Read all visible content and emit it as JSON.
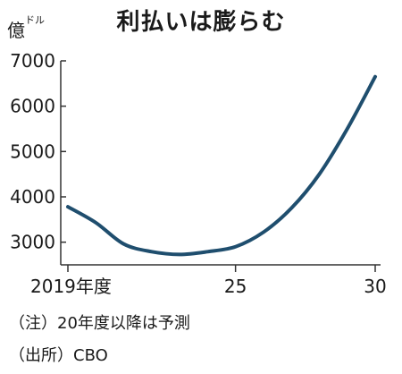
{
  "chart_data": {
    "type": "line",
    "title": "利払いは膨らむ",
    "ylabel": "億",
    "yunit": "ドル",
    "x": [
      2019,
      2020,
      2021,
      2022,
      2023,
      2024,
      2025,
      2026,
      2027,
      2028,
      2029,
      2030
    ],
    "xticks": [
      2019,
      2025,
      2030
    ],
    "xtick_labels": [
      "2019年度",
      "25",
      "30"
    ],
    "yticks": [
      3000,
      4000,
      5000,
      6000,
      7000
    ],
    "ylim": [
      2500,
      7200
    ],
    "series": [
      {
        "values": [
          3780,
          3430,
          2960,
          2790,
          2730,
          2790,
          2900,
          3220,
          3750,
          4500,
          5500,
          6650
        ],
        "color": "#1f4e6e"
      }
    ],
    "grid": false
  },
  "notes": {
    "note1": "（注）20年度以降は予測",
    "note2": "（出所）CBO"
  }
}
